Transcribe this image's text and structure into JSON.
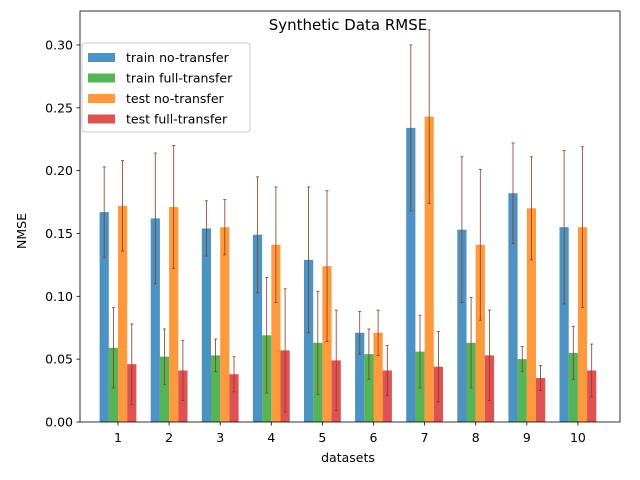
{
  "chart_data": {
    "type": "bar",
    "title": "Synthetic Data RMSE",
    "xlabel": "datasets",
    "ylabel": "NMSE",
    "categories": [
      "1",
      "2",
      "3",
      "4",
      "5",
      "6",
      "7",
      "8",
      "9",
      "10"
    ],
    "ylim": [
      0,
      0.327
    ],
    "yticks": [
      "0.00",
      "0.05",
      "0.10",
      "0.15",
      "0.20",
      "0.25",
      "0.30"
    ],
    "grid": false,
    "legend_position": "top-left",
    "series": [
      {
        "name": "train no-transfer",
        "color": "#1f77b4",
        "values": [
          0.167,
          0.162,
          0.154,
          0.149,
          0.129,
          0.071,
          0.234,
          0.153,
          0.182,
          0.155
        ],
        "errors": [
          0.036,
          0.052,
          0.022,
          0.046,
          0.058,
          0.017,
          0.066,
          0.058,
          0.04,
          0.061
        ]
      },
      {
        "name": "train full-transfer",
        "color": "#2ca02c",
        "values": [
          0.059,
          0.052,
          0.053,
          0.069,
          0.063,
          0.054,
          0.056,
          0.063,
          0.05,
          0.055
        ],
        "errors": [
          0.032,
          0.022,
          0.013,
          0.046,
          0.041,
          0.02,
          0.029,
          0.036,
          0.01,
          0.021
        ]
      },
      {
        "name": "test no-transfer",
        "color": "#ff7f0e",
        "values": [
          0.172,
          0.171,
          0.155,
          0.141,
          0.124,
          0.071,
          0.243,
          0.141,
          0.17,
          0.155
        ],
        "errors": [
          0.036,
          0.049,
          0.022,
          0.046,
          0.06,
          0.018,
          0.069,
          0.06,
          0.041,
          0.064
        ]
      },
      {
        "name": "test full-transfer",
        "color": "#d62728",
        "values": [
          0.046,
          0.041,
          0.038,
          0.057,
          0.049,
          0.041,
          0.044,
          0.053,
          0.035,
          0.041
        ],
        "errors": [
          0.032,
          0.024,
          0.014,
          0.049,
          0.04,
          0.02,
          0.028,
          0.036,
          0.01,
          0.021
        ]
      }
    ]
  }
}
